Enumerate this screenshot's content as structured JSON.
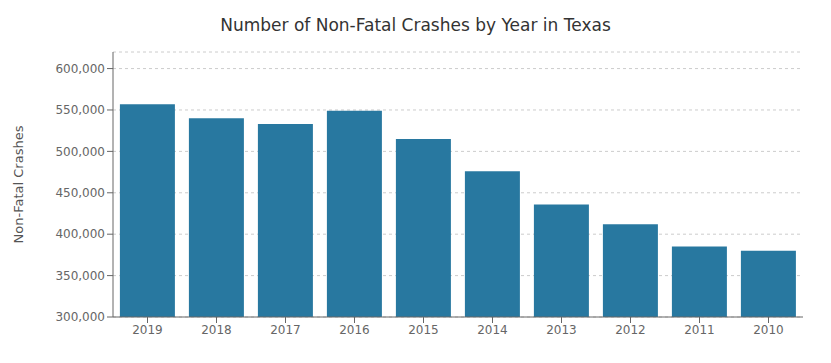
{
  "chart_data": {
    "type": "bar",
    "title": "Number of Non-Fatal Crashes by Year in Texas",
    "ylabel": "Non-Fatal Crashes",
    "categories": [
      "2019",
      "2018",
      "2017",
      "2016",
      "2015",
      "2014",
      "2013",
      "2012",
      "2011",
      "2010"
    ],
    "values": [
      557000,
      540000,
      533000,
      549000,
      515000,
      476000,
      436000,
      412000,
      385000,
      380000
    ],
    "color": "#2878a0",
    "ylim": [
      300000,
      620000
    ],
    "yticks": [
      {
        "value": 300000,
        "label": "300,000"
      },
      {
        "value": 350000,
        "label": "350,000"
      },
      {
        "value": 400000,
        "label": "400,000"
      },
      {
        "value": 450000,
        "label": "450,000"
      },
      {
        "value": 500000,
        "label": "500,000"
      },
      {
        "value": 550000,
        "label": "550,000"
      },
      {
        "value": 600000,
        "label": "600,000"
      }
    ],
    "grid": true
  }
}
